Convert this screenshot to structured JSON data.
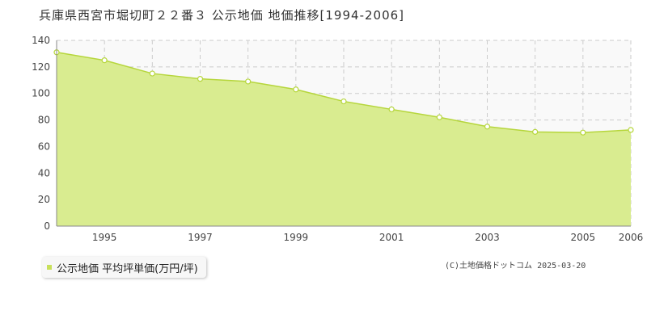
{
  "title": "兵庫県西宮市堀切町２２番３ 公示地価 地価推移[1994-2006]",
  "legend_label": "公示地価 平均坪単価(万円/坪)",
  "credit": "(C)土地価格ドットコム 2025-03-20",
  "colors": {
    "fill": "#d9ec90",
    "line": "#b6d63c",
    "marker_fill": "#ffffff",
    "grid": "#cccccc",
    "plot_bg": "#f9f9f9"
  },
  "chart_data": {
    "type": "area",
    "x": [
      1994,
      1995,
      1996,
      1997,
      1998,
      1999,
      2000,
      2001,
      2002,
      2003,
      2004,
      2005,
      2006
    ],
    "series": [
      {
        "name": "公示地価 平均坪単価(万円/坪)",
        "values": [
          131,
          125,
          115,
          111,
          109,
          103,
          94,
          88,
          82,
          75,
          71,
          70.5,
          72.5
        ]
      }
    ],
    "ylim": [
      0,
      140
    ],
    "yticks": [
      0,
      20,
      40,
      60,
      80,
      100,
      120,
      140
    ],
    "xtick_labels": [
      "1995",
      "1997",
      "1999",
      "2001",
      "2003",
      "2005",
      "2006"
    ],
    "xtick_values": [
      1995,
      1997,
      1999,
      2001,
      2003,
      2005,
      2006
    ],
    "grid": true,
    "legend_position": "bottom-left"
  }
}
